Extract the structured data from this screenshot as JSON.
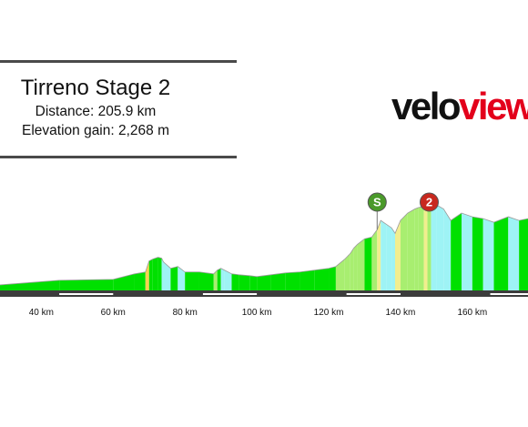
{
  "stage": {
    "title": "Tirreno Stage 2",
    "distance_line": "Distance: 205.9 km",
    "elevation_line": "Elevation gain: 2,268 m"
  },
  "logo": {
    "part1": "velo",
    "part2": "view",
    "color1": "#111111",
    "color2": "#e3001b"
  },
  "chart_data": {
    "type": "area",
    "title": "",
    "xlabel": "",
    "ylabel": "",
    "x_unit": "km",
    "xlim": [
      28.5,
      175.5
    ],
    "ylim": [
      0,
      440
    ],
    "x_ticks": [
      40,
      60,
      80,
      100,
      120,
      140,
      160
    ],
    "x_tick_labels": [
      "40 km",
      "60 km",
      "80 km",
      "100 km",
      "120 km",
      "140 km",
      "160 km"
    ],
    "profile_km": [
      28.5,
      45,
      60,
      66,
      69,
      70,
      71,
      72.5,
      73.5,
      74,
      76,
      78,
      80,
      84,
      88,
      89,
      90,
      91,
      93,
      95,
      98,
      100,
      104,
      108,
      112,
      116,
      120,
      122,
      124.5,
      126,
      127,
      128,
      130,
      132,
      133.5,
      134.5,
      136,
      137.5,
      138.5,
      140,
      142,
      144,
      145,
      146.5,
      147.5,
      148.5,
      150,
      152,
      154,
      157,
      160,
      163,
      166,
      170,
      173,
      175.5
    ],
    "profile_elev_m": [
      30,
      55,
      60,
      90,
      100,
      160,
      170,
      180,
      175,
      155,
      120,
      130,
      100,
      100,
      90,
      110,
      120,
      110,
      90,
      85,
      80,
      75,
      85,
      95,
      100,
      110,
      120,
      130,
      170,
      200,
      230,
      250,
      280,
      290,
      330,
      380,
      360,
      340,
      310,
      380,
      420,
      450,
      480,
      510,
      560,
      580,
      540,
      450,
      380,
      420,
      400,
      390,
      370,
      400,
      380,
      390
    ],
    "colors": {
      "low": "#00e000",
      "mid": "#a8ee70",
      "high": "#f1ee8e",
      "steep": "#ffd34e",
      "descent": "#9ef3f5",
      "peak": "#ff8c1a",
      "road": "#3c3c3c",
      "road_marks": "#ffffff"
    },
    "markers": [
      {
        "type": "sprint",
        "label": "S",
        "km": 133.5,
        "color": "#4a9a2a"
      },
      {
        "type": "climb",
        "label": "2",
        "km": 148,
        "color": "#c8281e"
      }
    ]
  }
}
